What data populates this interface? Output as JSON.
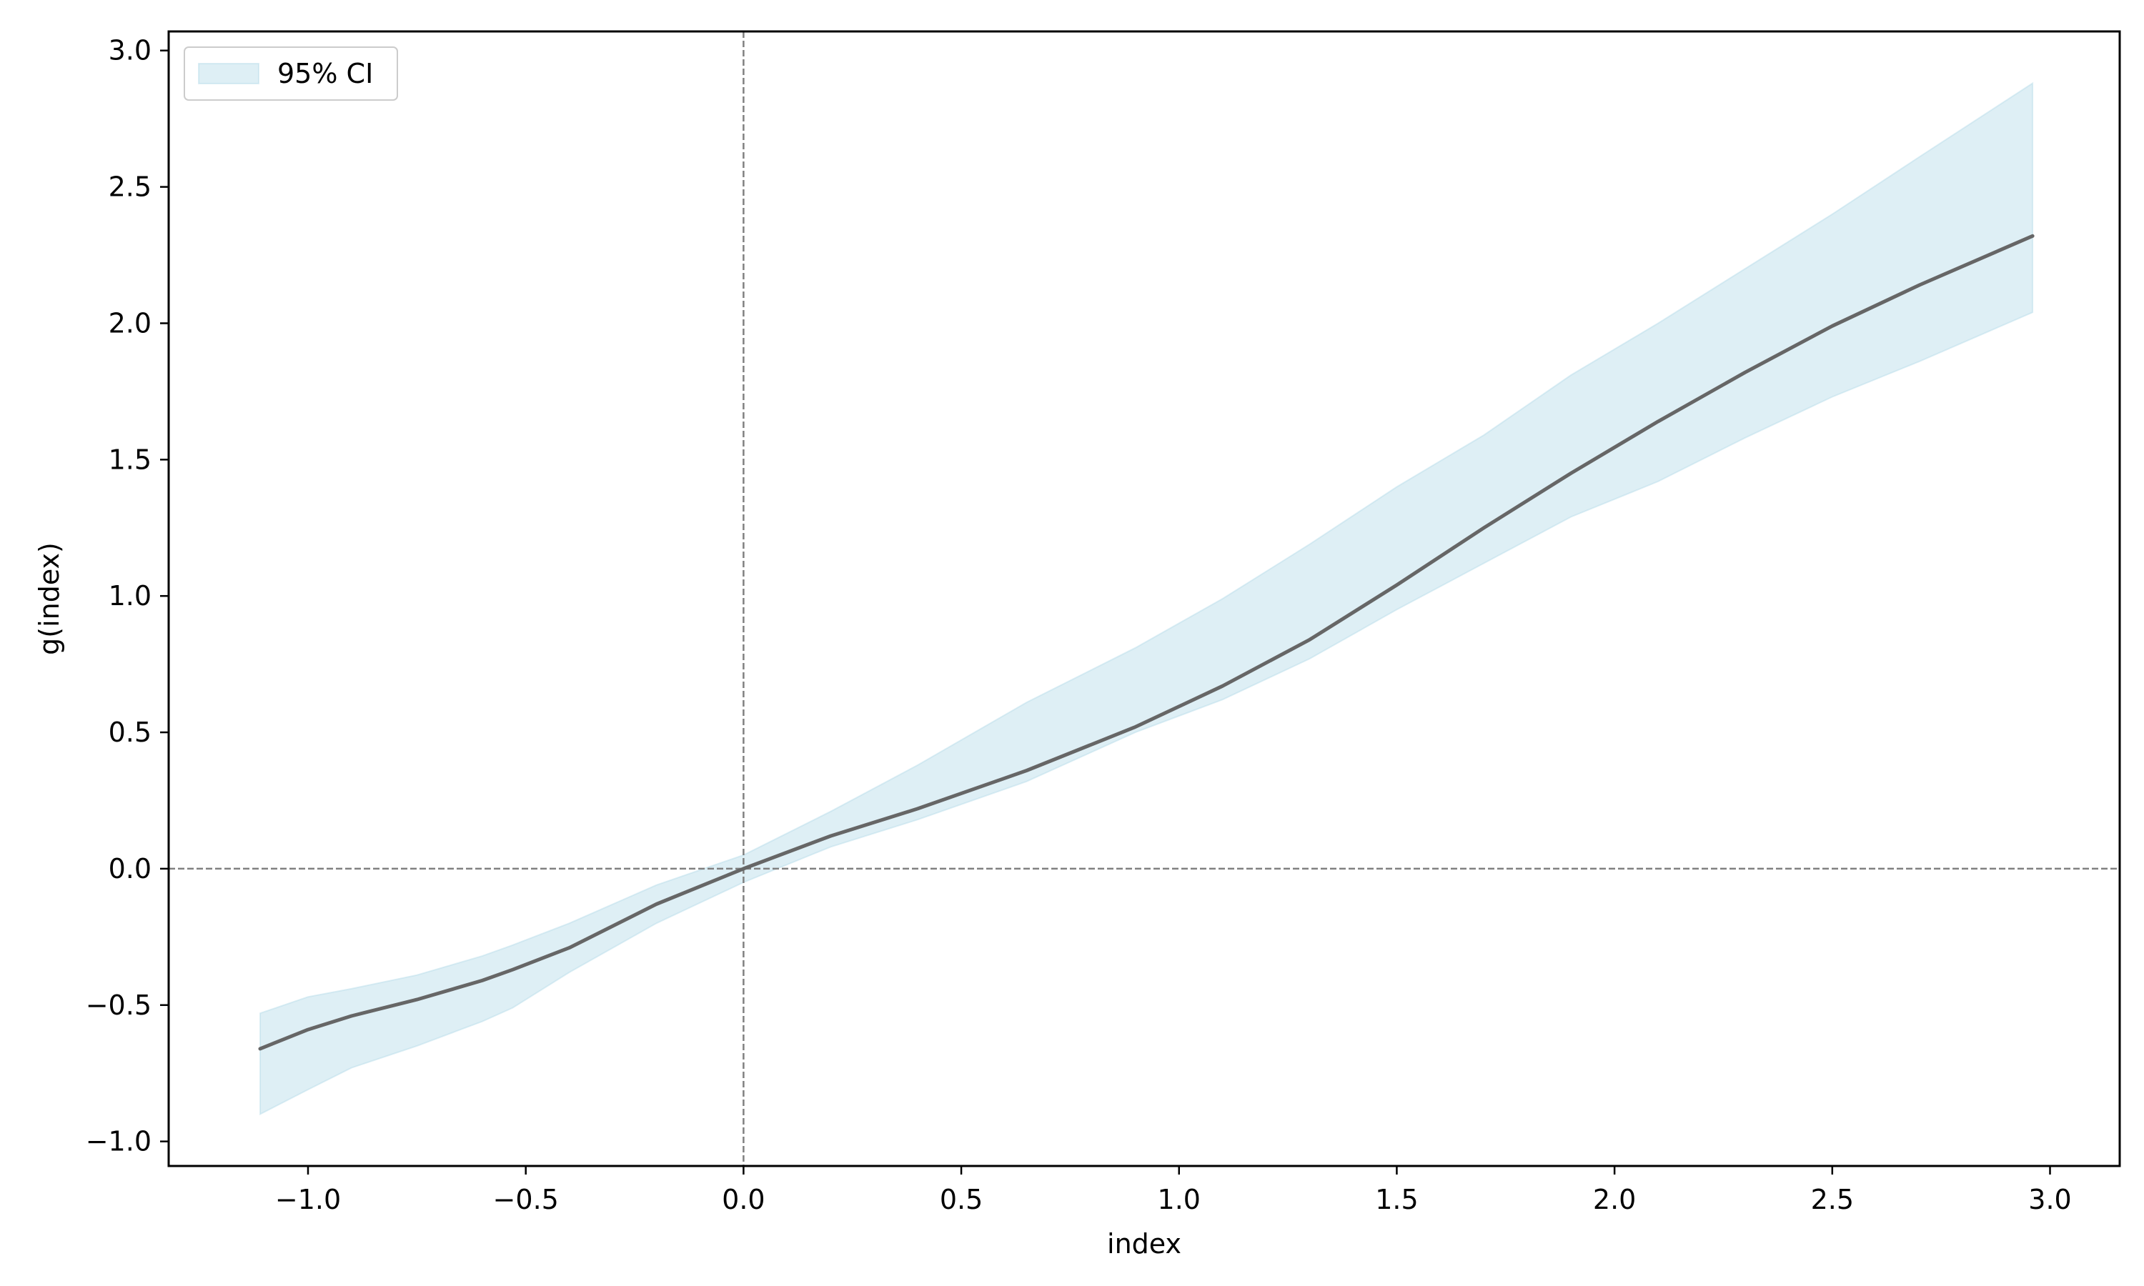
{
  "chart_data": {
    "type": "line",
    "title": "",
    "xlabel": "index",
    "ylabel": "g(index)",
    "xlim": [
      -1.32,
      3.16
    ],
    "ylim": [
      -1.09,
      3.07
    ],
    "xticks": [
      -1.0,
      -0.5,
      0.0,
      0.5,
      1.0,
      1.5,
      2.0,
      2.5,
      3.0
    ],
    "yticks": [
      -1.0,
      -0.5,
      0.0,
      0.5,
      1.0,
      1.5,
      2.0,
      2.5,
      3.0
    ],
    "xtick_labels": [
      "−1.0",
      "−0.5",
      "0.0",
      "0.5",
      "1.0",
      "1.5",
      "2.0",
      "2.5",
      "3.0"
    ],
    "ytick_labels": [
      "−1.0",
      "−0.5",
      "0.0",
      "0.5",
      "1.0",
      "1.5",
      "2.0",
      "2.5",
      "3.0"
    ],
    "reference_lines": {
      "x": 0.0,
      "y": 0.0,
      "style": "dashed"
    },
    "grid": false,
    "legend": {
      "placement": "top-left",
      "entries": [
        "95% CI"
      ]
    },
    "series": [
      {
        "kind": "line",
        "color": "#666666",
        "x": [
          -1.11,
          -1.0,
          -0.9,
          -0.75,
          -0.6,
          -0.53,
          -0.4,
          -0.2,
          0.0,
          0.2,
          0.4,
          0.65,
          0.9,
          1.1,
          1.3,
          1.5,
          1.7,
          1.9,
          2.1,
          2.3,
          2.5,
          2.7,
          2.96
        ],
        "y": [
          -0.66,
          -0.59,
          -0.54,
          -0.48,
          -0.41,
          -0.37,
          -0.29,
          -0.13,
          0.0,
          0.12,
          0.22,
          0.36,
          0.52,
          0.67,
          0.84,
          1.04,
          1.25,
          1.45,
          1.64,
          1.82,
          1.99,
          2.14,
          2.32
        ]
      },
      {
        "kind": "band",
        "name": "95% CI",
        "color": "#add8e6",
        "x": [
          -1.11,
          -1.0,
          -0.9,
          -0.75,
          -0.6,
          -0.53,
          -0.4,
          -0.2,
          0.0,
          0.2,
          0.4,
          0.65,
          0.9,
          1.1,
          1.3,
          1.5,
          1.7,
          1.9,
          2.1,
          2.3,
          2.5,
          2.7,
          2.96
        ],
        "upper": [
          -0.53,
          -0.47,
          -0.44,
          -0.39,
          -0.32,
          -0.28,
          -0.2,
          -0.06,
          0.05,
          0.21,
          0.38,
          0.61,
          0.81,
          0.99,
          1.19,
          1.4,
          1.59,
          1.81,
          2.0,
          2.2,
          2.4,
          2.61,
          2.88
        ],
        "lower": [
          -0.9,
          -0.81,
          -0.73,
          -0.65,
          -0.56,
          -0.51,
          -0.38,
          -0.2,
          -0.05,
          0.08,
          0.18,
          0.32,
          0.5,
          0.62,
          0.77,
          0.95,
          1.12,
          1.29,
          1.42,
          1.58,
          1.73,
          1.86,
          2.04
        ]
      }
    ]
  }
}
